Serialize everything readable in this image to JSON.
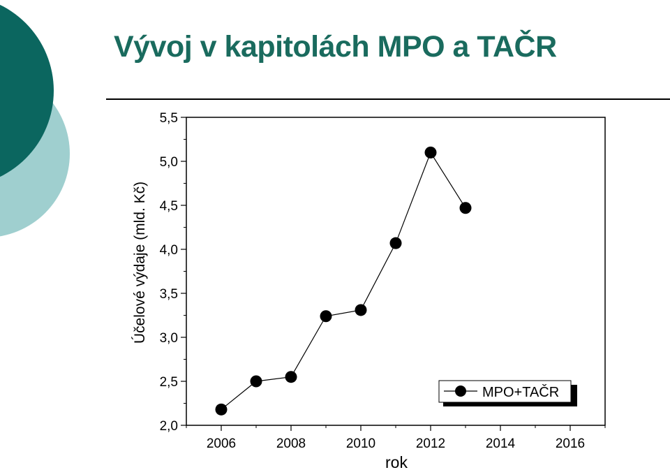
{
  "slide": {
    "title": "Vývoj v kapitolách MPO a TAČR"
  },
  "colors": {
    "title": "#1a6b5e",
    "deco_dark": "#0b665f",
    "deco_light": "#9fcfcf",
    "rule": "#000000",
    "series": "#000000"
  },
  "chart_data": {
    "type": "line",
    "xlabel": "rok",
    "ylabel": "Účelové výdaje (mld. Kč)",
    "xlim": [
      2005,
      2017
    ],
    "ylim": [
      2.0,
      5.5
    ],
    "x_ticks": [
      "2006",
      "2008",
      "2010",
      "2012",
      "2014",
      "2016"
    ],
    "x_tick_values": [
      2006,
      2008,
      2010,
      2012,
      2014,
      2016
    ],
    "y_ticks": [
      "2,0",
      "2,5",
      "3,0",
      "3,5",
      "4,0",
      "4,5",
      "5,0",
      "5,5"
    ],
    "y_tick_values": [
      2.0,
      2.5,
      3.0,
      3.5,
      4.0,
      4.5,
      5.0,
      5.5
    ],
    "legend_position": "bottom-right",
    "grid": false,
    "series": [
      {
        "name": "MPO+TAČR",
        "marker": "circle",
        "x": [
          2006,
          2007,
          2008,
          2009,
          2010,
          2011,
          2012,
          2013
        ],
        "y": [
          2.18,
          2.5,
          2.55,
          3.24,
          3.31,
          4.07,
          5.1,
          4.47
        ]
      }
    ]
  }
}
